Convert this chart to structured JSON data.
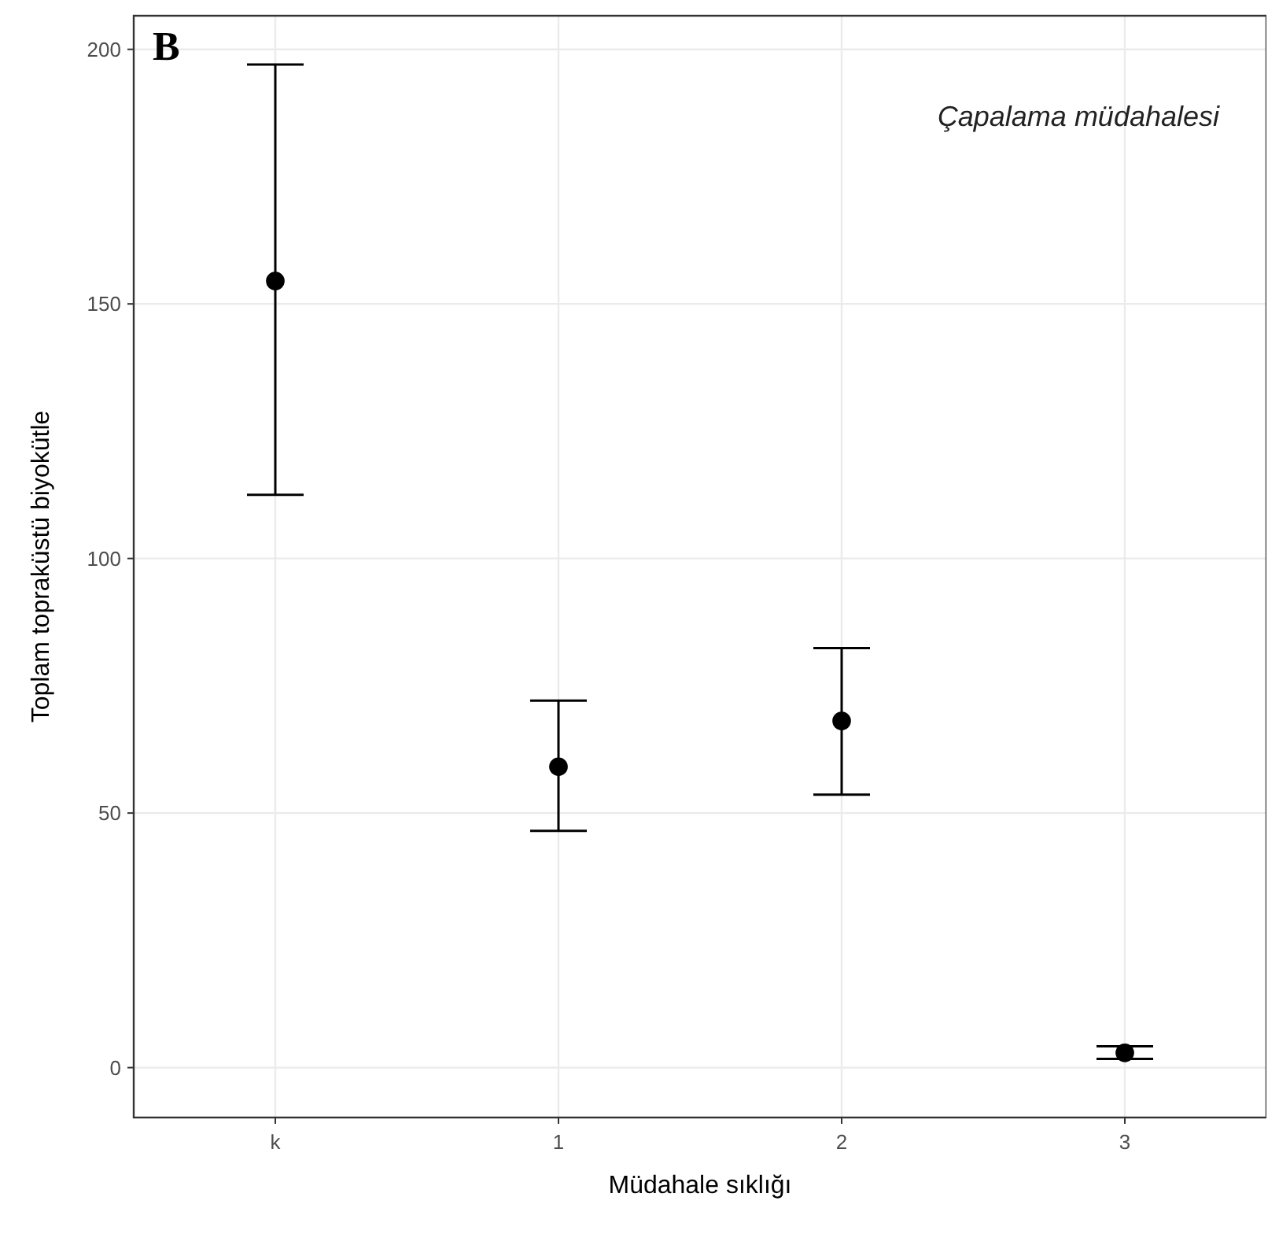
{
  "chart_data": {
    "type": "scatter",
    "xlabel": "Müdahale sıklığı",
    "ylabel": "Toplam topraküstü biyokütle",
    "categories": [
      "k",
      "1",
      "2",
      "3"
    ],
    "values": [
      154.5,
      59.1,
      68.1,
      2.9
    ],
    "errors": [
      [
        112.5,
        197
      ],
      [
        46.5,
        72.1
      ],
      [
        53.6,
        82.4
      ],
      [
        1.7,
        4.2
      ]
    ],
    "color": "#000000",
    "marker": "circle",
    "ylim": [
      -9.8,
      206.6
    ],
    "yticks": [
      0,
      50,
      100,
      150,
      200
    ],
    "grid": true,
    "annotations": [
      "B",
      "Çapalama müdahalesi"
    ]
  }
}
